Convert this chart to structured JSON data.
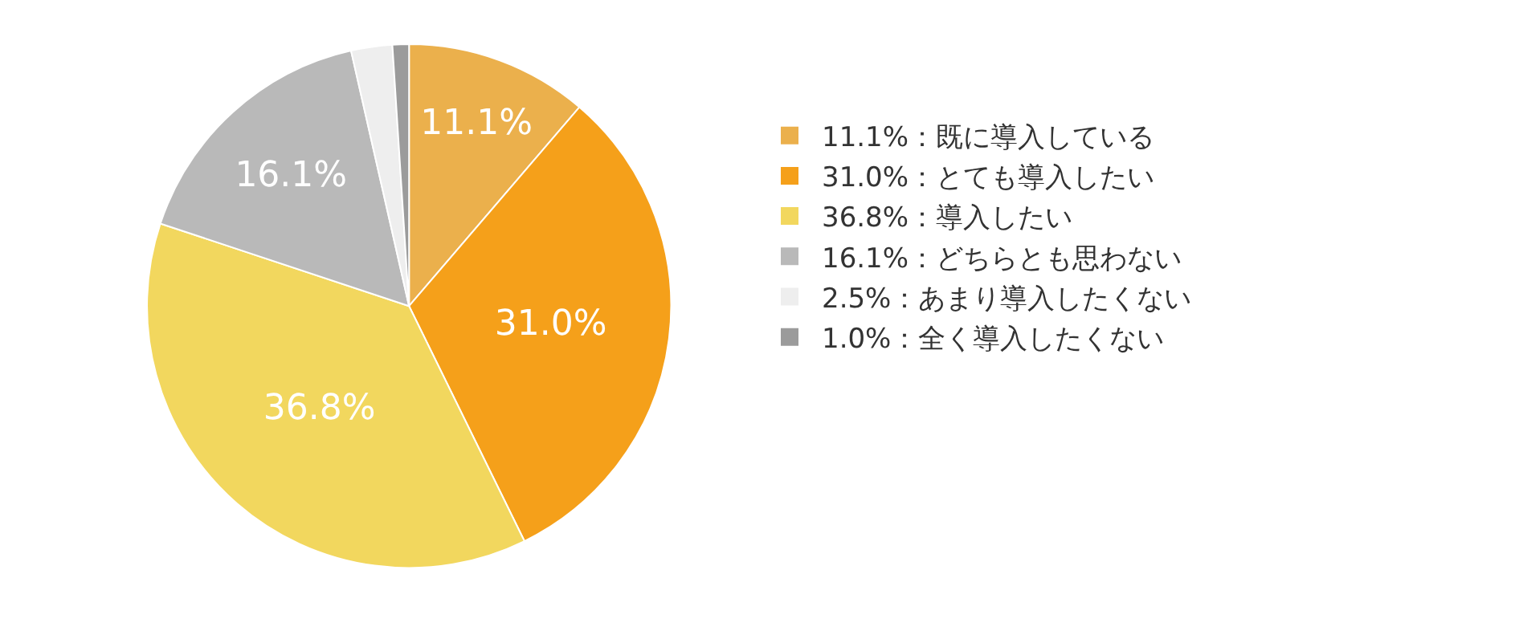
{
  "chart_data": {
    "type": "pie",
    "categories": [
      "11.1%：既に導入している",
      "31.0%：とても導入したい",
      "36.8%：導入したい",
      "16.1%：どちらとも思わない",
      "2.5%：あまり導入したくない",
      "1.0%：全く導入したくない"
    ],
    "values": [
      11.1,
      31.0,
      36.8,
      16.1,
      2.5,
      1.0
    ],
    "value_labels": [
      "11.1%",
      "31.0%",
      "36.8%",
      "16.1%",
      null,
      null
    ],
    "colors": [
      "#ebb04c",
      "#f5a01a",
      "#f2d75e",
      "#b9b9b9",
      "#eeeeee",
      "#9b9b9b"
    ],
    "legend": "right"
  }
}
